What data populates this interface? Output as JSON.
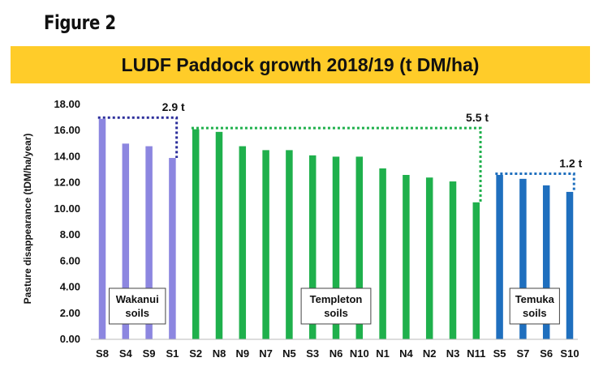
{
  "figure_label": "Figure 2",
  "colors": {
    "title_bg": "#FFCC29",
    "wakanui": "#8C86E0",
    "templeton": "#1FB04C",
    "temuka": "#1F6FBE",
    "wakanui_bracket": "#2B2E9A",
    "templeton_bracket": "#1FB04C",
    "temuka_bracket": "#1F6FBE"
  },
  "chart_data": {
    "type": "bar",
    "title": "LUDF Paddock growth 2018/19 (t DM/ha)",
    "ylabel": "Pasture disappearance (tDM/ha/year)",
    "xlabel": "",
    "ylim": [
      0,
      18
    ],
    "yticks": [
      "0.00",
      "2.00",
      "4.00",
      "6.00",
      "8.00",
      "10.00",
      "12.00",
      "14.00",
      "16.00",
      "18.00"
    ],
    "categories": [
      "S8",
      "S4",
      "S9",
      "S1",
      "S2",
      "N8",
      "N9",
      "N7",
      "N5",
      "S3",
      "N6",
      "N10",
      "N1",
      "N4",
      "N2",
      "N3",
      "N11",
      "S5",
      "S7",
      "S6",
      "S10"
    ],
    "values": [
      16.9,
      15.0,
      14.8,
      13.9,
      16.1,
      15.9,
      14.8,
      14.5,
      14.5,
      14.1,
      14.0,
      14.0,
      13.1,
      12.6,
      12.4,
      12.1,
      10.5,
      12.6,
      12.3,
      11.8,
      11.3
    ],
    "groups": [
      {
        "label_line1": "Wakanui",
        "label_line2": "soils",
        "start": 0,
        "end": 3,
        "difference": "2.9 t",
        "color_key": "wakanui"
      },
      {
        "label_line1": "Templeton",
        "label_line2": "soils",
        "start": 4,
        "end": 16,
        "difference": "5.5 t",
        "color_key": "templeton"
      },
      {
        "label_line1": "Temuka",
        "label_line2": "soils",
        "start": 17,
        "end": 20,
        "difference": "1.2 t",
        "color_key": "temuka"
      }
    ]
  }
}
